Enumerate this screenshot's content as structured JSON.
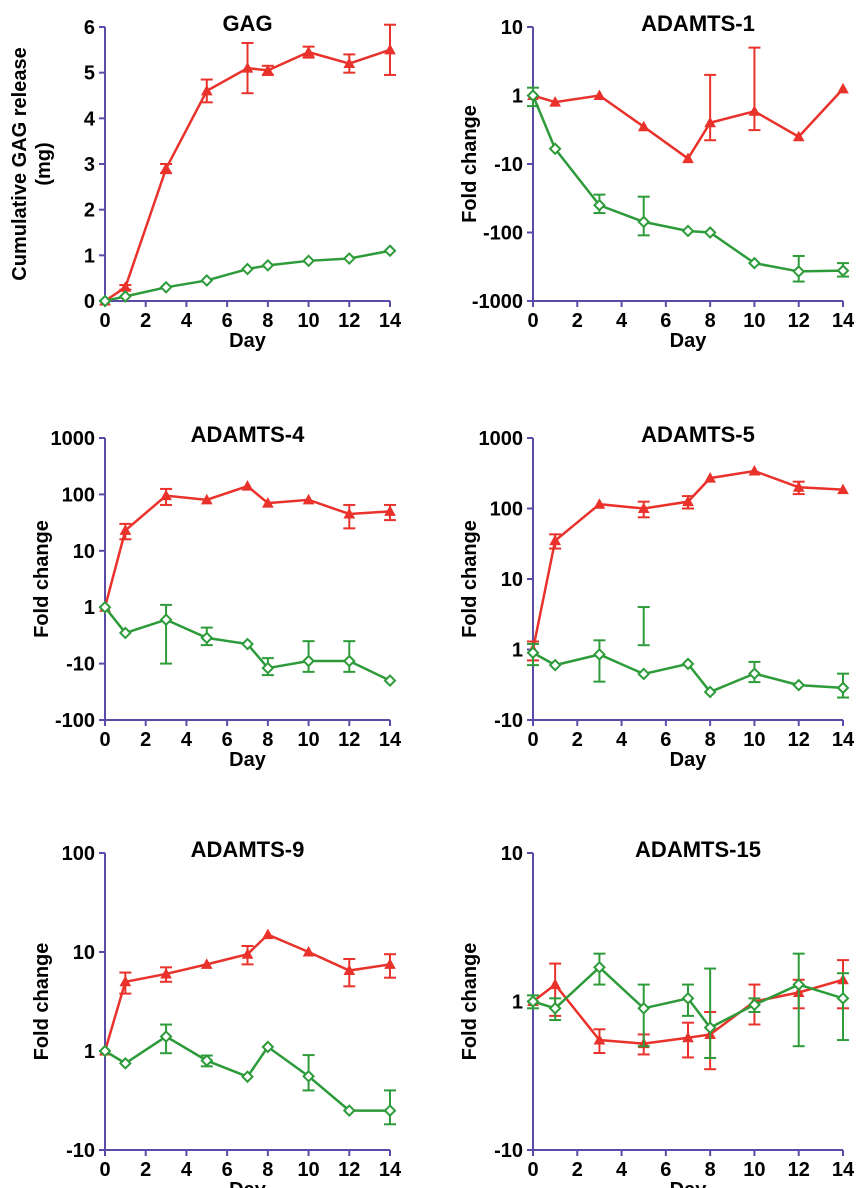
{
  "figure": {
    "colors": {
      "axis": "#5b4ba8",
      "red_series": "#e8322b",
      "green_series": "#2e9b3a",
      "text": "#000000"
    }
  },
  "chart_data": [
    {
      "type": "line",
      "title": "GAG",
      "xlabel": "Day",
      "ylabel": "Cumulative GAG release\n(mg)",
      "x_ticks": [
        "0",
        "2",
        "4",
        "6",
        "8",
        "10",
        "12",
        "14"
      ],
      "x_range": [
        0,
        14
      ],
      "y_scale": "linear",
      "y_range": [
        0,
        6
      ],
      "y_ticks": [
        {
          "label": "0",
          "value": 0
        },
        {
          "label": "1",
          "value": 1
        },
        {
          "label": "2",
          "value": 2
        },
        {
          "label": "3",
          "value": 3
        },
        {
          "label": "4",
          "value": 4
        },
        {
          "label": "5",
          "value": 5
        },
        {
          "label": "6",
          "value": 6
        }
      ],
      "series": [
        {
          "color": "red",
          "marker": "triangle",
          "x": [
            0,
            1,
            3,
            5,
            7,
            8,
            10,
            12,
            14
          ],
          "y": [
            0,
            0.3,
            2.9,
            4.6,
            5.1,
            5.05,
            5.45,
            5.2,
            5.5
          ],
          "err": [
            0,
            0.05,
            0.1,
            0.25,
            0.55,
            0.1,
            0.12,
            0.2,
            0.55
          ]
        },
        {
          "color": "green",
          "marker": "diamond",
          "x": [
            0,
            1,
            3,
            5,
            7,
            8,
            10,
            12,
            14
          ],
          "y": [
            0,
            0.1,
            0.3,
            0.45,
            0.7,
            0.78,
            0.88,
            0.93,
            1.1
          ],
          "err": [
            0,
            0,
            0,
            0,
            0,
            0,
            0,
            0,
            0
          ]
        }
      ]
    },
    {
      "type": "line",
      "title": "ADAMTS-1",
      "xlabel": "Day",
      "ylabel": "Fold change",
      "x_ticks": [
        "0",
        "2",
        "4",
        "6",
        "8",
        "10",
        "12",
        "14"
      ],
      "x_range": [
        0,
        14
      ],
      "y_scale": "signed-log",
      "y_range": [
        -1000,
        10
      ],
      "y_ticks": [
        {
          "label": "10",
          "value": 10
        },
        {
          "label": "1",
          "value": 1
        },
        {
          "label": "-10",
          "value": -10
        },
        {
          "label": "-100",
          "value": -100
        },
        {
          "label": "-1000",
          "value": -1000
        }
      ],
      "series": [
        {
          "color": "red",
          "marker": "triangle",
          "x": [
            0,
            1,
            3,
            5,
            7,
            8,
            10,
            12,
            14
          ],
          "y": [
            1,
            0.8,
            1.0,
            0.35,
            0.12,
            -2.5,
            -1.7,
            -4,
            -0.8
          ],
          "err": [
            0,
            0,
            0,
            0,
            0,
            2,
            1.5,
            0,
            0
          ]
        },
        {
          "color": "green",
          "marker": "diamond",
          "x": [
            0,
            1,
            3,
            5,
            7,
            8,
            10,
            12,
            14
          ],
          "y": [
            1,
            -6,
            -40,
            -70,
            -95,
            -100,
            -280,
            -370,
            -360
          ],
          "err": [
            0.3,
            0,
            12,
            40,
            0,
            0,
            0,
            150,
            80
          ]
        }
      ]
    },
    {
      "type": "line",
      "title": "ADAMTS-4",
      "xlabel": "Day",
      "ylabel": "Fold change",
      "x_ticks": [
        "0",
        "2",
        "4",
        "6",
        "8",
        "10",
        "12",
        "14"
      ],
      "x_range": [
        0,
        14
      ],
      "y_scale": "signed-log",
      "y_range": [
        -100,
        1000
      ],
      "y_ticks": [
        {
          "label": "1000",
          "value": 1000
        },
        {
          "label": "100",
          "value": 100
        },
        {
          "label": "10",
          "value": 10
        },
        {
          "label": "1",
          "value": 1
        },
        {
          "label": "-10",
          "value": -10
        },
        {
          "label": "-100",
          "value": -100
        }
      ],
      "series": [
        {
          "color": "red",
          "marker": "triangle",
          "x": [
            0,
            1,
            3,
            5,
            7,
            8,
            10,
            12,
            14
          ],
          "y": [
            1,
            23,
            95,
            80,
            140,
            70,
            80,
            45,
            50
          ],
          "err": [
            0,
            7,
            30,
            0,
            0,
            0,
            0,
            20,
            15
          ]
        },
        {
          "color": "green",
          "marker": "diamond",
          "x": [
            0,
            1,
            3,
            5,
            7,
            8,
            10,
            12,
            14
          ],
          "y": [
            1,
            0.35,
            0.6,
            -3.5,
            -4.5,
            -12,
            -9,
            -9,
            -20
          ],
          "err": [
            0,
            0,
            0.5,
            1.2,
            0,
            4,
            5,
            5,
            0
          ]
        }
      ]
    },
    {
      "type": "line",
      "title": "ADAMTS-5",
      "xlabel": "Day",
      "ylabel": "Fold change",
      "x_ticks": [
        "0",
        "2",
        "4",
        "6",
        "8",
        "10",
        "12",
        "14"
      ],
      "x_range": [
        0,
        14
      ],
      "y_scale": "signed-log",
      "y_range": [
        -10,
        1000
      ],
      "y_ticks": [
        {
          "label": "1000",
          "value": 1000
        },
        {
          "label": "100",
          "value": 100
        },
        {
          "label": "10",
          "value": 10
        },
        {
          "label": "1",
          "value": 1
        },
        {
          "label": "-10",
          "value": -10
        }
      ],
      "series": [
        {
          "color": "red",
          "marker": "triangle",
          "x": [
            0,
            1,
            3,
            5,
            7,
            8,
            10,
            12,
            14
          ],
          "y": [
            1,
            35,
            115,
            100,
            125,
            270,
            340,
            200,
            185
          ],
          "err": [
            0.3,
            8,
            0,
            25,
            25,
            0,
            0,
            40,
            0
          ]
        },
        {
          "color": "green",
          "marker": "diamond",
          "x": [
            0,
            1,
            3,
            5,
            7,
            8,
            10,
            12,
            14
          ],
          "y": [
            0.9,
            0.6,
            0.85,
            0.45,
            -1.6,
            -4,
            -2.2,
            -3.2,
            -3.5
          ],
          "err": [
            0.3,
            0,
            0.5,
            0.7,
            0,
            0,
            0.7,
            0,
            1.3
          ]
        }
      ]
    },
    {
      "type": "line",
      "title": "ADAMTS-9",
      "xlabel": "Day",
      "ylabel": "Fold change",
      "x_ticks": [
        "0",
        "2",
        "4",
        "6",
        "8",
        "10",
        "12",
        "14"
      ],
      "x_range": [
        0,
        14
      ],
      "y_scale": "signed-log",
      "y_range": [
        -10,
        100
      ],
      "y_ticks": [
        {
          "label": "100",
          "value": 100
        },
        {
          "label": "10",
          "value": 10
        },
        {
          "label": "1",
          "value": 1
        },
        {
          "label": "-10",
          "value": -10
        }
      ],
      "series": [
        {
          "color": "red",
          "marker": "triangle",
          "x": [
            0,
            1,
            3,
            5,
            7,
            8,
            10,
            12,
            14
          ],
          "y": [
            1,
            5,
            6,
            7.5,
            9.5,
            15,
            10,
            6.5,
            7.5
          ],
          "err": [
            0,
            1.2,
            1,
            0,
            2,
            0,
            0,
            2,
            2
          ]
        },
        {
          "color": "green",
          "marker": "diamond",
          "x": [
            0,
            1,
            3,
            5,
            7,
            8,
            10,
            12,
            14
          ],
          "y": [
            1,
            0.75,
            1.4,
            0.8,
            0.55,
            1.1,
            -1.8,
            -4,
            -4
          ],
          "err": [
            0,
            0,
            0.45,
            0.1,
            0,
            0,
            0.7,
            0,
            1.5
          ]
        }
      ]
    },
    {
      "type": "line",
      "title": "ADAMTS-15",
      "xlabel": "Day",
      "ylabel": "Fold change",
      "x_ticks": [
        "0",
        "2",
        "4",
        "6",
        "8",
        "10",
        "12",
        "14"
      ],
      "x_range": [
        0,
        14
      ],
      "y_scale": "signed-log",
      "y_range": [
        -10,
        10
      ],
      "y_ticks": [
        {
          "label": "10",
          "value": 10
        },
        {
          "label": "1",
          "value": 1
        },
        {
          "label": "-10",
          "value": -10
        }
      ],
      "series": [
        {
          "color": "red",
          "marker": "triangle",
          "x": [
            0,
            1,
            3,
            5,
            7,
            8,
            10,
            12,
            14
          ],
          "y": [
            1,
            1.3,
            0.55,
            0.52,
            0.57,
            0.6,
            1.0,
            1.15,
            1.4
          ],
          "err": [
            0,
            0.5,
            0.1,
            0.08,
            0.15,
            0.25,
            0.3,
            0.25,
            0.5
          ]
        },
        {
          "color": "green",
          "marker": "diamond",
          "x": [
            0,
            1,
            3,
            5,
            7,
            8,
            10,
            12,
            14
          ],
          "y": [
            1,
            0.9,
            1.7,
            0.9,
            1.05,
            -1.5,
            0.95,
            1.3,
            1.05
          ],
          "err": [
            0.1,
            0.15,
            0.4,
            0.4,
            0.25,
            0.9,
            0.1,
            0.8,
            0.5
          ]
        }
      ]
    }
  ]
}
